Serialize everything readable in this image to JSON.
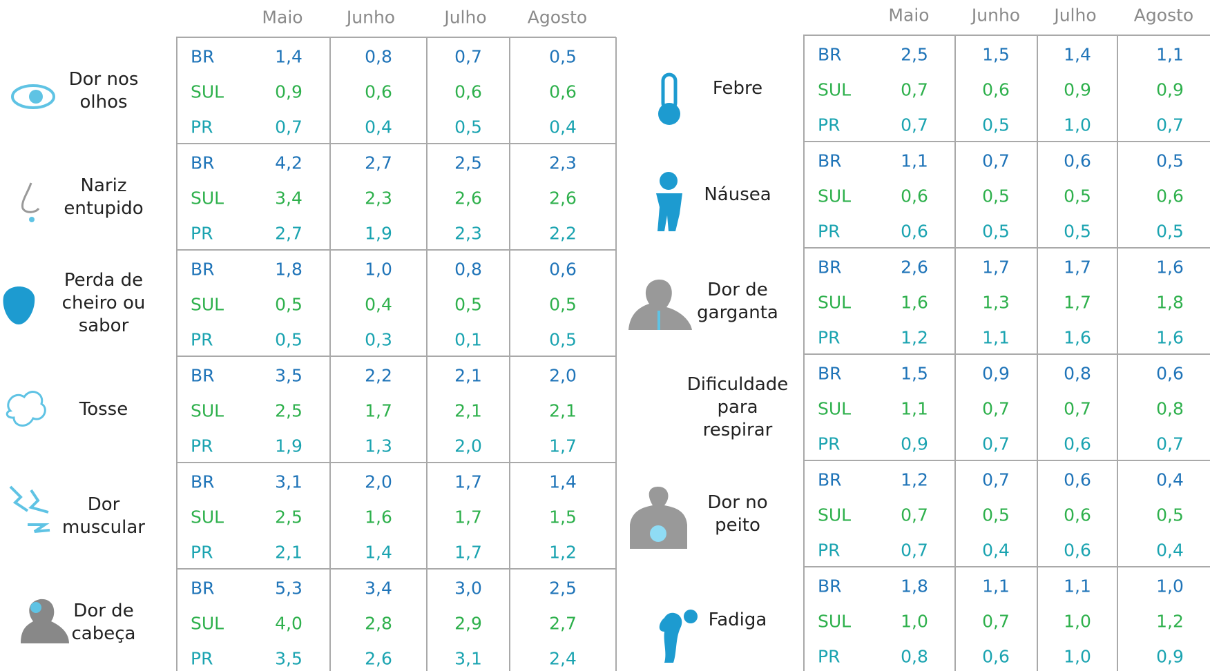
{
  "panels": [
    {
      "months": [
        "Maio",
        "Junho",
        "Julho",
        "Agosto"
      ],
      "rows": [
        {
          "label": [
            "Dor nos",
            "olhos"
          ],
          "regions": [
            {
              "name": "BR",
              "values": [
                "1,4",
                "0,8",
                "0,7",
                "0,5"
              ]
            },
            {
              "name": "SUL",
              "values": [
                "0,9",
                "0,6",
                "0,6",
                "0,6"
              ]
            },
            {
              "name": "PR",
              "values": [
                "0,7",
                "0,4",
                "0,5",
                "0,4"
              ]
            }
          ]
        },
        {
          "label": [
            "Nariz",
            "entupido"
          ],
          "regions": [
            {
              "name": "BR",
              "values": [
                "4,2",
                "2,7",
                "2,5",
                "2,3"
              ]
            },
            {
              "name": "SUL",
              "values": [
                "3,4",
                "2,3",
                "2,6",
                "2,6"
              ]
            },
            {
              "name": "PR",
              "values": [
                "2,7",
                "1,9",
                "2,3",
                "2,2"
              ]
            }
          ]
        },
        {
          "label": [
            "Perda de",
            "cheiro ou",
            "sabor"
          ],
          "regions": [
            {
              "name": "BR",
              "values": [
                "1,8",
                "1,0",
                "0,8",
                "0,6"
              ]
            },
            {
              "name": "SUL",
              "values": [
                "0,5",
                "0,4",
                "0,5",
                "0,5"
              ]
            },
            {
              "name": "PR",
              "values": [
                "0,5",
                "0,3",
                "0,1",
                "0,5"
              ]
            }
          ]
        },
        {
          "label": [
            "Tosse"
          ],
          "regions": [
            {
              "name": "BR",
              "values": [
                "3,5",
                "2,2",
                "2,1",
                "2,0"
              ]
            },
            {
              "name": "SUL",
              "values": [
                "2,5",
                "1,7",
                "2,1",
                "2,1"
              ]
            },
            {
              "name": "PR",
              "values": [
                "1,9",
                "1,3",
                "2,0",
                "1,7"
              ]
            }
          ]
        },
        {
          "label": [
            "Dor",
            "muscular"
          ],
          "regions": [
            {
              "name": "BR",
              "values": [
                "3,1",
                "2,0",
                "1,7",
                "1,4"
              ]
            },
            {
              "name": "SUL",
              "values": [
                "2,5",
                "1,6",
                "1,7",
                "1,5"
              ]
            },
            {
              "name": "PR",
              "values": [
                "2,1",
                "1,4",
                "1,7",
                "1,2"
              ]
            }
          ]
        },
        {
          "label": [
            "Dor de",
            "cabeça"
          ],
          "regions": [
            {
              "name": "BR",
              "values": [
                "5,3",
                "3,4",
                "3,0",
                "2,5"
              ]
            },
            {
              "name": "SUL",
              "values": [
                "4,0",
                "2,8",
                "2,9",
                "2,7"
              ]
            },
            {
              "name": "PR",
              "values": [
                "3,5",
                "2,6",
                "3,1",
                "2,4"
              ]
            }
          ]
        }
      ]
    },
    {
      "months": [
        "Maio",
        "Junho",
        "Julho",
        "Agosto"
      ],
      "rows": [
        {
          "label": [
            "Febre"
          ],
          "regions": [
            {
              "name": "BR",
              "values": [
                "2,5",
                "1,5",
                "1,4",
                "1,1"
              ]
            },
            {
              "name": "SUL",
              "values": [
                "0,7",
                "0,6",
                "0,9",
                "0,9"
              ]
            },
            {
              "name": "PR",
              "values": [
                "0,7",
                "0,5",
                "1,0",
                "0,7"
              ]
            }
          ]
        },
        {
          "label": [
            "Náusea"
          ],
          "regions": [
            {
              "name": "BR",
              "values": [
                "1,1",
                "0,7",
                "0,6",
                "0,5"
              ]
            },
            {
              "name": "SUL",
              "values": [
                "0,6",
                "0,5",
                "0,5",
                "0,6"
              ]
            },
            {
              "name": "PR",
              "values": [
                "0,6",
                "0,5",
                "0,5",
                "0,5"
              ]
            }
          ]
        },
        {
          "label": [
            "Dor de",
            "garganta"
          ],
          "regions": [
            {
              "name": "BR",
              "values": [
                "2,6",
                "1,7",
                "1,7",
                "1,6"
              ]
            },
            {
              "name": "SUL",
              "values": [
                "1,6",
                "1,3",
                "1,7",
                "1,8"
              ]
            },
            {
              "name": "PR",
              "values": [
                "1,2",
                "1,1",
                "1,6",
                "1,6"
              ]
            }
          ]
        },
        {
          "label": [
            "Dificuldade",
            "para",
            "respirar"
          ],
          "regions": [
            {
              "name": "BR",
              "values": [
                "1,5",
                "0,9",
                "0,8",
                "0,6"
              ]
            },
            {
              "name": "SUL",
              "values": [
                "1,1",
                "0,7",
                "0,7",
                "0,8"
              ]
            },
            {
              "name": "PR",
              "values": [
                "0,9",
                "0,7",
                "0,6",
                "0,7"
              ]
            }
          ]
        },
        {
          "label": [
            "Dor no",
            "peito"
          ],
          "regions": [
            {
              "name": "BR",
              "values": [
                "1,2",
                "0,7",
                "0,6",
                "0,4"
              ]
            },
            {
              "name": "SUL",
              "values": [
                "0,7",
                "0,5",
                "0,6",
                "0,5"
              ]
            },
            {
              "name": "PR",
              "values": [
                "0,7",
                "0,4",
                "0,6",
                "0,4"
              ]
            }
          ]
        },
        {
          "label": [
            "Fadiga"
          ],
          "regions": [
            {
              "name": "BR",
              "values": [
                "1,8",
                "1,1",
                "1,1",
                "1,0"
              ]
            },
            {
              "name": "SUL",
              "values": [
                "1,0",
                "0,7",
                "1,0",
                "1,2"
              ]
            },
            {
              "name": "PR",
              "values": [
                "0,8",
                "0,6",
                "1,0",
                "0,9"
              ]
            }
          ]
        }
      ]
    }
  ]
}
